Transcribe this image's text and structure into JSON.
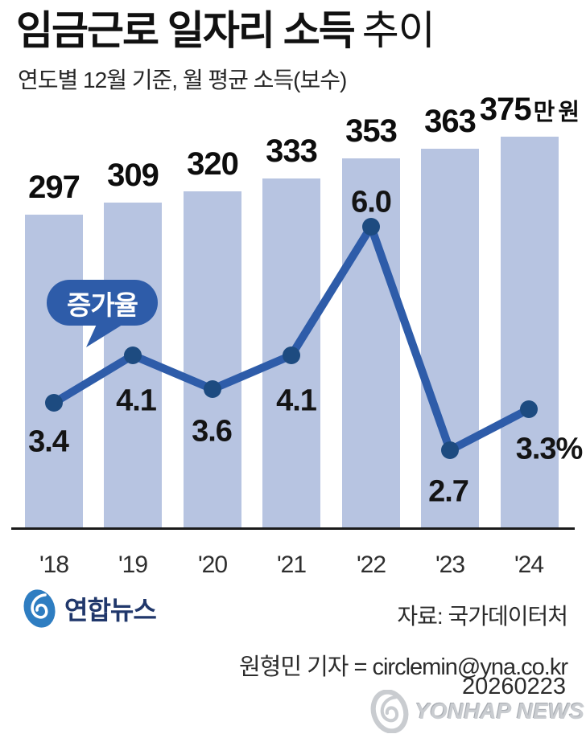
{
  "header": {
    "title_strong": "임금근로 일자리 소득",
    "title_light": "추이",
    "subtitle": "연도별 12월 기준, 월 평균 소득(보수)"
  },
  "chart_data": {
    "type": "combo-bar-line",
    "title": "임금근로 일자리 소득 추이",
    "subtitle": "연도별 12월 기준, 월 평균 소득(보수)",
    "categories": [
      "'18",
      "'19",
      "'20",
      "'21",
      "'22",
      "'23",
      "'24"
    ],
    "series": [
      {
        "name": "월 평균 소득",
        "type": "bar",
        "unit": "만 원",
        "values": [
          297,
          309,
          320,
          333,
          353,
          363,
          375
        ],
        "labels": [
          "297",
          "309",
          "320",
          "333",
          "353",
          "363",
          "375"
        ],
        "last_label_suffix": "만 원",
        "color": "#b7c4e1"
      },
      {
        "name": "증가율",
        "type": "line",
        "unit": "%",
        "values": [
          3.4,
          4.1,
          3.6,
          4.1,
          6.0,
          2.7,
          3.3
        ],
        "labels": [
          "3.4",
          "4.1",
          "3.6",
          "4.1",
          "6.0",
          "2.7",
          "3.3%"
        ],
        "color": "#2e5ca9",
        "dot_color": "#1d4b80"
      }
    ],
    "annotation_badge": "증가율",
    "axis": {
      "baseline": true,
      "gridlines": false,
      "legend_position": "none",
      "y_axis_visible": false
    }
  },
  "footer": {
    "logo_text": "연합뉴스",
    "source": "자료: 국가데이터처",
    "byline": "원형민 기자 = circlemin@yna.co.kr",
    "date": "20260223",
    "watermark": "YONHAP NEWS"
  },
  "colors": {
    "bar": "#b7c4e1",
    "line": "#2e5ca9",
    "dot": "#1d4b80",
    "badge_bg": "#2e5ca9",
    "baseline": "#1a1a1a",
    "logo_blue": "#2e7dc1",
    "logo_navy": "#20376b",
    "watermark_gray": "#c9ccd0"
  }
}
